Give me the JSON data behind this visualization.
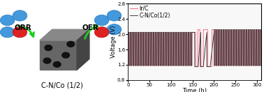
{
  "xlabel": "Time (h)",
  "ylabel": "Voltage (V)",
  "xlim": [
    0,
    310
  ],
  "ylim": [
    0.8,
    2.8
  ],
  "yticks": [
    0.8,
    1.2,
    1.6,
    2.0,
    2.4,
    2.8
  ],
  "xticks": [
    0,
    50,
    100,
    150,
    200,
    250,
    300
  ],
  "irc_color": "#ff4466",
  "cnco_color": "#333333",
  "legend_labels": [
    "Ir/C",
    "C-N/Co(1/2)"
  ],
  "bottom_label": "C-N/Co (1/2)",
  "orr_text": "ORR",
  "oer_text": "OER",
  "arrow_color": "#22cc22",
  "blue_sphere_color": "#4499dd",
  "red_sphere_color": "#dd2222",
  "cube_front_color": "#666666",
  "cube_top_color": "#888888",
  "cube_right_color": "#444444",
  "cube_dot_color": "#111111",
  "bg_color": "#f8f8f8",
  "short_cycle_period": 4.5,
  "short_high": 2.05,
  "short_low": 1.18,
  "long_high": 2.12,
  "long_low": 1.15
}
